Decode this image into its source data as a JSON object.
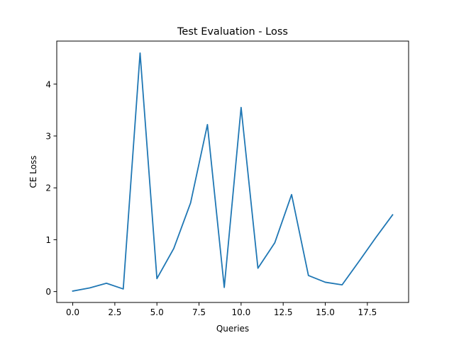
{
  "chart_data": {
    "type": "line",
    "title": "Test Evaluation - Loss",
    "xlabel": "Queries",
    "ylabel": "CE Loss",
    "xlim": [
      -0.95,
      19.95
    ],
    "ylim": [
      -0.21,
      4.83
    ],
    "xticks": [
      0,
      2.5,
      5,
      7.5,
      10,
      12.5,
      15,
      17.5
    ],
    "xtick_labels": [
      "0.0",
      "2.5",
      "5.0",
      "7.5",
      "10.0",
      "12.5",
      "15.0",
      "17.5"
    ],
    "yticks": [
      0,
      1,
      2,
      3,
      4
    ],
    "ytick_labels": [
      "0",
      "1",
      "2",
      "3",
      "4"
    ],
    "grid": false,
    "series": [
      {
        "color": "#1f77b4",
        "x": [
          0,
          1,
          2,
          3,
          4,
          5,
          6,
          7,
          8,
          9,
          10,
          11,
          12,
          13,
          14,
          15,
          16,
          17,
          18,
          19
        ],
        "y": [
          0.01,
          0.07,
          0.16,
          0.05,
          4.6,
          0.25,
          0.83,
          1.71,
          3.22,
          0.08,
          3.55,
          0.45,
          0.94,
          1.87,
          0.31,
          0.18,
          0.13,
          0.58,
          1.04,
          1.48
        ]
      }
    ]
  }
}
